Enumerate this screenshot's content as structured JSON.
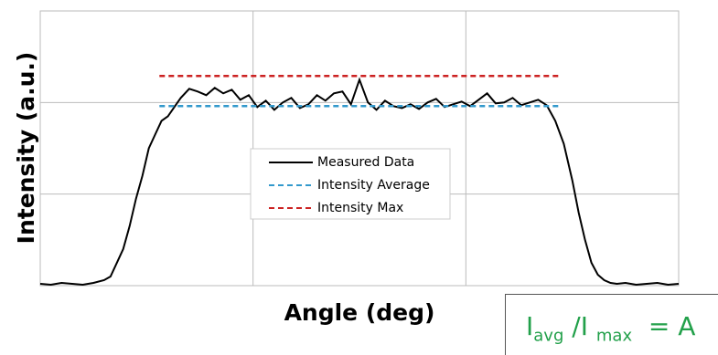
{
  "chart_data": {
    "type": "line",
    "ylabel": "Intensity (a.u.)",
    "xlabel": "Angle (deg)",
    "xlim": [
      0,
      3
    ],
    "ylim": [
      0,
      3
    ],
    "xgrid": [
      1,
      2
    ],
    "ygrid": [
      1,
      2
    ],
    "grid": true,
    "legend": "center",
    "series": [
      {
        "name": "Measured Data",
        "color": "#000000",
        "dash": false,
        "x": [
          0.0,
          0.05,
          0.1,
          0.15,
          0.2,
          0.25,
          0.3,
          0.33,
          0.36,
          0.39,
          0.42,
          0.45,
          0.48,
          0.51,
          0.54,
          0.57,
          0.6,
          0.63,
          0.66,
          0.7,
          0.74,
          0.78,
          0.82,
          0.86,
          0.9,
          0.94,
          0.98,
          1.02,
          1.06,
          1.1,
          1.14,
          1.18,
          1.22,
          1.26,
          1.3,
          1.34,
          1.38,
          1.42,
          1.46,
          1.5,
          1.54,
          1.58,
          1.62,
          1.66,
          1.7,
          1.74,
          1.78,
          1.82,
          1.86,
          1.9,
          1.94,
          1.98,
          2.02,
          2.06,
          2.1,
          2.14,
          2.18,
          2.22,
          2.26,
          2.3,
          2.34,
          2.38,
          2.42,
          2.46,
          2.5,
          2.53,
          2.56,
          2.59,
          2.62,
          2.65,
          2.68,
          2.71,
          2.75,
          2.8,
          2.85,
          2.9,
          2.95,
          3.0
        ],
        "values": [
          0.02,
          0.01,
          0.03,
          0.02,
          0.01,
          0.03,
          0.06,
          0.1,
          0.25,
          0.4,
          0.65,
          0.95,
          1.2,
          1.5,
          1.65,
          1.8,
          1.85,
          1.95,
          2.05,
          2.15,
          2.12,
          2.08,
          2.16,
          2.1,
          2.14,
          2.03,
          2.08,
          1.95,
          2.02,
          1.92,
          2.0,
          2.05,
          1.94,
          1.98,
          2.08,
          2.02,
          2.1,
          2.12,
          1.98,
          2.25,
          2.0,
          1.92,
          2.02,
          1.96,
          1.94,
          1.98,
          1.93,
          2.0,
          2.04,
          1.95,
          1.98,
          2.01,
          1.96,
          2.03,
          2.1,
          1.99,
          2.0,
          2.05,
          1.97,
          2.0,
          2.03,
          1.97,
          1.8,
          1.55,
          1.15,
          0.8,
          0.5,
          0.25,
          0.12,
          0.06,
          0.03,
          0.02,
          0.03,
          0.01,
          0.02,
          0.03,
          0.01,
          0.02
        ]
      },
      {
        "name": "Intensity Average",
        "color": "#3399cc",
        "dash": true,
        "x": [
          0.56,
          2.45
        ],
        "values": [
          1.96,
          1.96
        ]
      },
      {
        "name": "Intensity Max",
        "color": "#cc2222",
        "dash": true,
        "x": [
          0.56,
          2.45
        ],
        "values": [
          2.29,
          2.29
        ]
      }
    ],
    "formula": {
      "base1": "I",
      "sub1": "avg",
      "base2": "/I",
      "sub2": "max",
      "rest": "= A"
    }
  }
}
